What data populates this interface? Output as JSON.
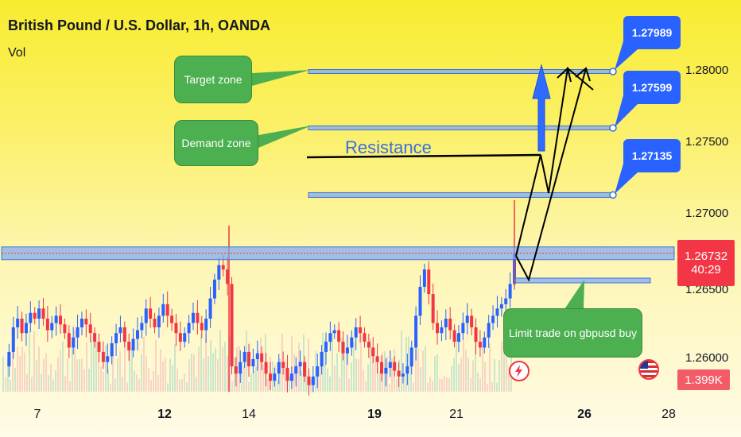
{
  "header": {
    "title": "British Pound / U.S. Dollar, 1h, OANDA",
    "volume_label": "Vol"
  },
  "annotations": {
    "target_zone": "Target zone",
    "demand_zone": "Demand zone",
    "resistance": "Resistance",
    "limit_trade": "Limit trade on gbpusd buy"
  },
  "price_labels": [
    "1.27989",
    "1.27599",
    "1.27135"
  ],
  "y_axis": {
    "ticks": [
      {
        "label": "1.28000",
        "value": 1.28
      },
      {
        "label": "1.27500",
        "value": 1.275
      },
      {
        "label": "1.27000",
        "value": 1.27
      },
      {
        "label": "1.26500",
        "value": 1.265
      },
      {
        "label": "1.26000",
        "value": 1.26
      }
    ]
  },
  "current_price": {
    "value": "1.26732",
    "countdown": "40:29"
  },
  "volume_value": "1.399K",
  "x_axis": {
    "ticks": [
      {
        "label": "7",
        "bold": false
      },
      {
        "label": "12",
        "bold": true
      },
      {
        "label": "14",
        "bold": false
      },
      {
        "label": "19",
        "bold": true
      },
      {
        "label": "21",
        "bold": false
      },
      {
        "label": "26",
        "bold": true
      },
      {
        "label": "28",
        "bold": false
      }
    ]
  },
  "icons": {
    "event": "lightning-icon",
    "country": "us-flag-icon"
  },
  "colors": {
    "up": "#2962ff",
    "down": "#f23645",
    "zone": "#5b8ff9",
    "accent": "#2962ff",
    "callout": "#4caf50"
  },
  "chart_data": {
    "type": "candlestick",
    "title": "British Pound / U.S. Dollar, 1h, OANDA",
    "x_ticks": [
      "7",
      "12",
      "14",
      "19",
      "21",
      "26",
      "28"
    ],
    "ylim": [
      1.2575,
      1.2825
    ],
    "zones": [
      {
        "name": "Target zone",
        "price": 1.27989
      },
      {
        "name": "Demand zone",
        "price": 1.27599
      },
      {
        "name": "",
        "price": 1.27135
      },
      {
        "name": "",
        "price": 1.26732
      },
      {
        "name": "Limit trade on gbpusd buy",
        "price": 1.2654
      }
    ],
    "resistance_price": 1.2737,
    "current_price": 1.26732,
    "trade_path": [
      1.2654,
      1.27135,
      1.2737,
      1.26732,
      1.28,
      1.2789
    ],
    "series": [
      {
        "values": [
          1.2595,
          1.2605,
          1.2622,
          1.2628,
          1.2618,
          1.2625,
          1.2632,
          1.2628,
          1.2635,
          1.2628,
          1.262,
          1.2625,
          1.263,
          1.2624,
          1.2618,
          1.2608,
          1.2615,
          1.2622,
          1.2628,
          1.2624,
          1.2618,
          1.2612,
          1.2605,
          1.2598,
          1.2602,
          1.2611,
          1.2618,
          1.2622,
          1.2612,
          1.2606,
          1.2614,
          1.262,
          1.2625,
          1.2635,
          1.2628,
          1.2622,
          1.263,
          1.2638,
          1.263,
          1.2625,
          1.2618,
          1.2612,
          1.2618,
          1.2625,
          1.2632,
          1.2625,
          1.262,
          1.2628,
          1.2642,
          1.2655,
          1.2665,
          1.2662,
          1.2652,
          1.2595,
          1.259,
          1.2598,
          1.2605,
          1.2595,
          1.26,
          1.2604,
          1.2598,
          1.259,
          1.2585,
          1.259,
          1.2598,
          1.2594,
          1.2585,
          1.259,
          1.2595,
          1.2598,
          1.2588,
          1.2582,
          1.2588,
          1.2595,
          1.2605,
          1.2612,
          1.2618,
          1.262,
          1.2612,
          1.2604,
          1.2608,
          1.2615,
          1.2622,
          1.2618,
          1.2612,
          1.2608,
          1.2602,
          1.2598,
          1.259,
          1.2594,
          1.2598,
          1.2592,
          1.2588,
          1.259,
          1.2595,
          1.2608,
          1.263,
          1.265,
          1.2662,
          1.2645,
          1.2625,
          1.2618,
          1.2622,
          1.2628,
          1.262,
          1.2612,
          1.2618,
          1.2625,
          1.263,
          1.2622,
          1.2612,
          1.2608,
          1.2615,
          1.2625,
          1.263,
          1.2635,
          1.2638,
          1.2642,
          1.2652,
          1.2673
        ]
      }
    ]
  }
}
